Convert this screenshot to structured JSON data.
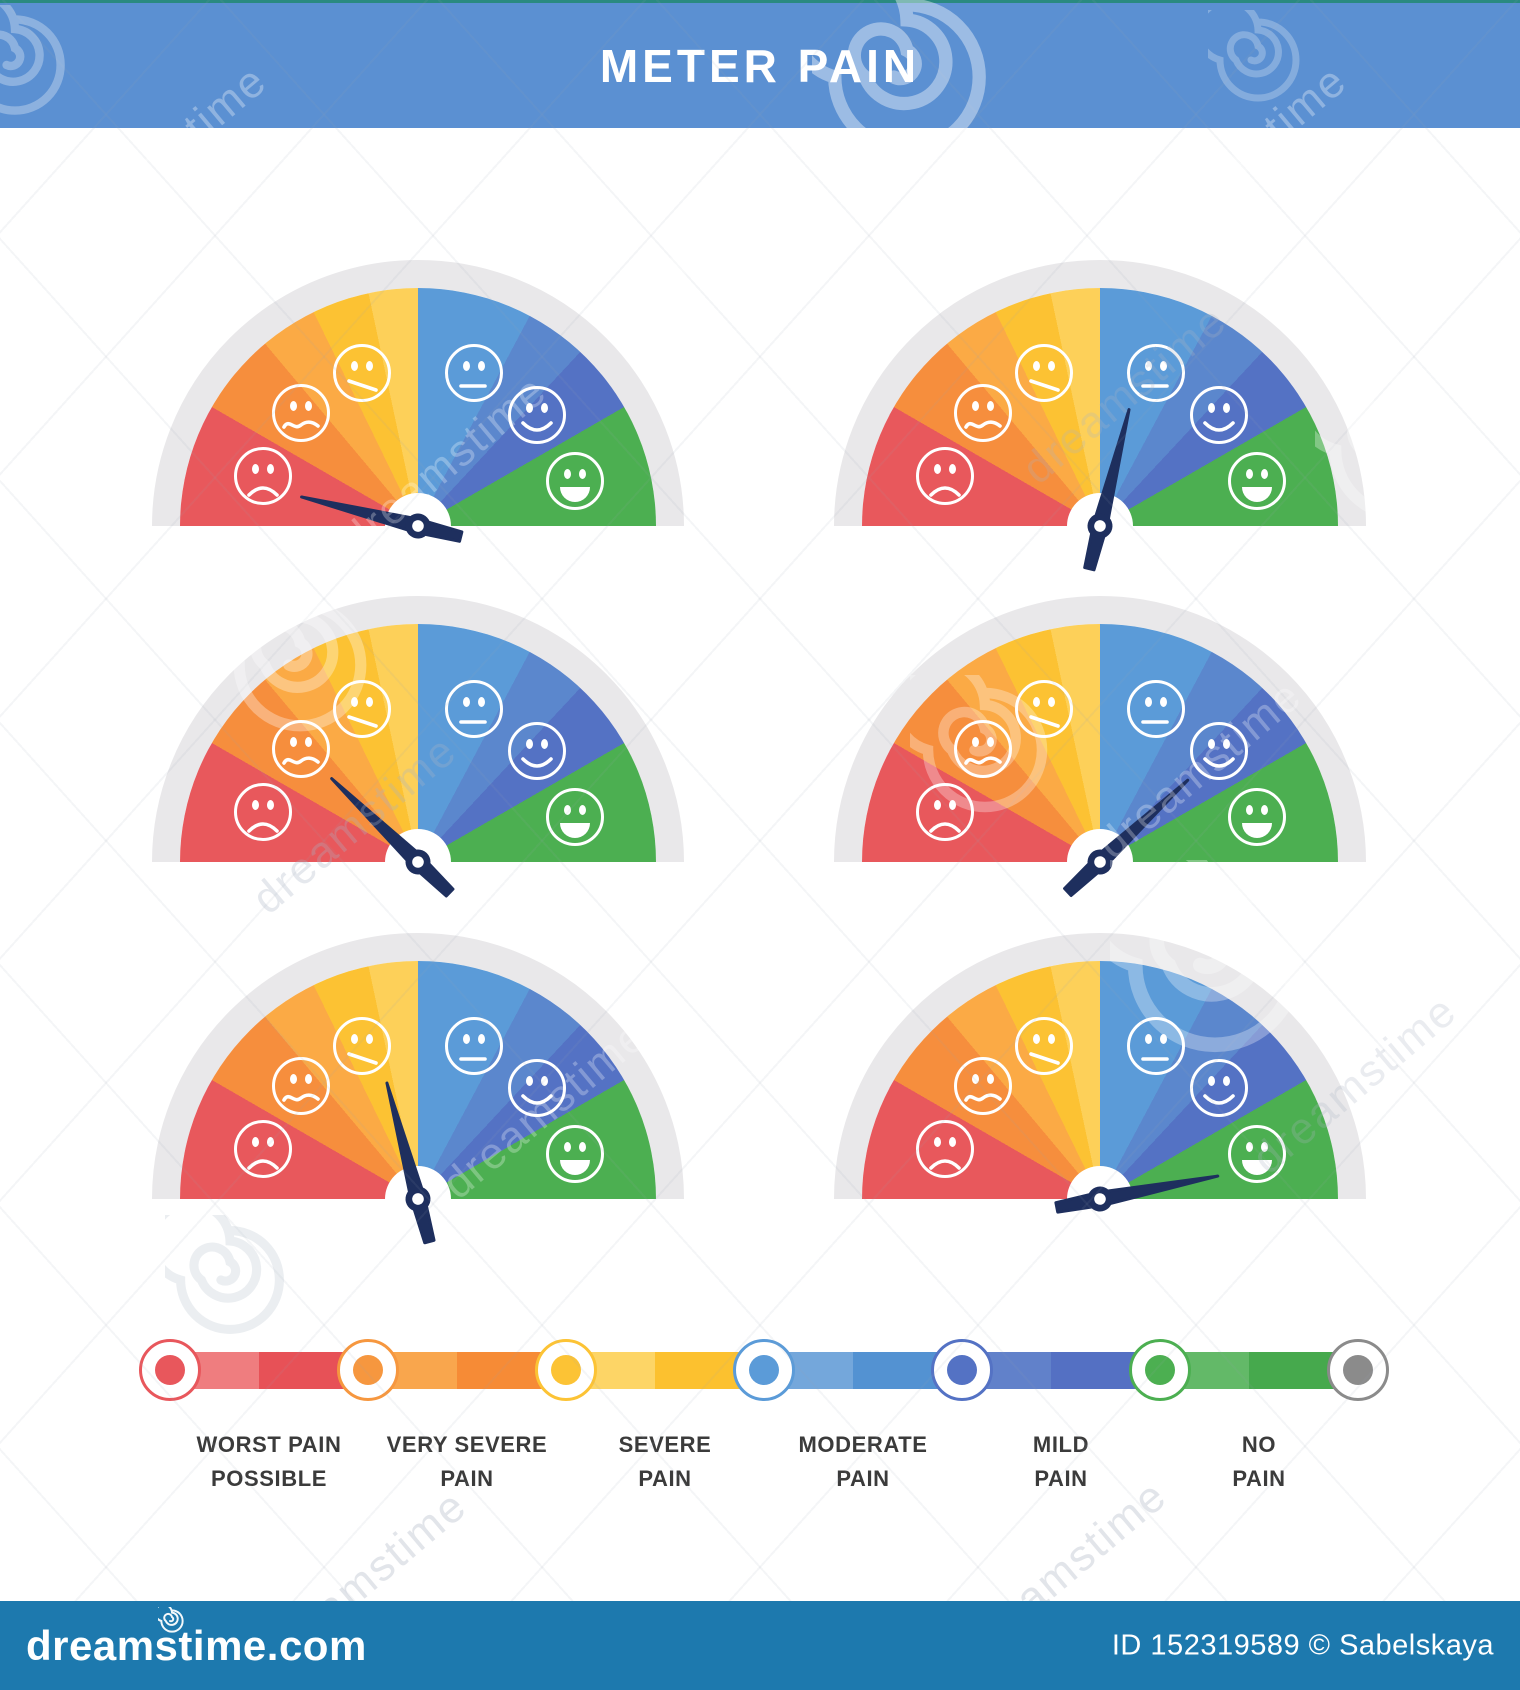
{
  "header": {
    "title": "METER PAIN"
  },
  "palette": {
    "header_bg": "#5b90d2",
    "header_top_stripe": "#2a8a80",
    "footer_bg": "#1d79ae",
    "ring_gray": "#e9e8ea",
    "needle_navy": "#1e2f5e",
    "face_white": "#ffffff",
    "label_text": "#3b3b3b"
  },
  "gauge_segments": [
    {
      "name": "red",
      "from": 0,
      "to": 30,
      "color": "#e8585c"
    },
    {
      "name": "orange",
      "from": 30,
      "to": 50,
      "color": "#f68e3d"
    },
    {
      "name": "orange-light",
      "from": 50,
      "to": 64,
      "color": "#fbaa45"
    },
    {
      "name": "gold",
      "from": 64,
      "to": 78,
      "color": "#fcc233"
    },
    {
      "name": "gold-light",
      "from": 78,
      "to": 90,
      "color": "#fdd059"
    },
    {
      "name": "blue-light",
      "from": 90,
      "to": 118,
      "color": "#5b9bd8"
    },
    {
      "name": "blue-medium",
      "from": 118,
      "to": 133,
      "color": "#5b87cd"
    },
    {
      "name": "indigo",
      "from": 133,
      "to": 150,
      "color": "#5472c4"
    },
    {
      "name": "green",
      "from": 150,
      "to": 180,
      "color": "#4caf51"
    }
  ],
  "faces": [
    {
      "name": "worst-pain-face",
      "mouth": "frown",
      "polar_deg": 162
    },
    {
      "name": "very-severe-face",
      "mouth": "squiggle",
      "polar_deg": 136
    },
    {
      "name": "severe-face",
      "mouth": "slant",
      "polar_deg": 110
    },
    {
      "name": "moderate-face",
      "mouth": "neutral",
      "polar_deg": 70
    },
    {
      "name": "mild-face",
      "mouth": "smile",
      "polar_deg": 43
    },
    {
      "name": "no-pain-face",
      "mouth": "grin",
      "polar_deg": 16
    }
  ],
  "gauges": [
    {
      "id": 1,
      "needle_polar_deg": 166,
      "points_to": "worst-pain-possible"
    },
    {
      "id": 2,
      "needle_polar_deg": 76,
      "points_to": "moderate-pain"
    },
    {
      "id": 3,
      "needle_polar_deg": 136,
      "points_to": "very-severe-pain"
    },
    {
      "id": 4,
      "needle_polar_deg": 43,
      "points_to": "mild-pain"
    },
    {
      "id": 5,
      "needle_polar_deg": 105,
      "points_to": "severe-pain"
    },
    {
      "id": 6,
      "needle_polar_deg": 11,
      "points_to": "no-pain"
    }
  ],
  "scale": {
    "markers": [
      {
        "color": "#e8575c"
      },
      {
        "color": "#f6973f"
      },
      {
        "color": "#fcc335"
      },
      {
        "color": "#5b9bd8"
      },
      {
        "color": "#5472c4"
      },
      {
        "color": "#4caf51"
      },
      {
        "color": "#8b8b8b"
      }
    ],
    "segments": [
      {
        "light": "#ef7d7f",
        "dark": "#e75157",
        "label": [
          "WORST PAIN",
          "POSSIBLE"
        ]
      },
      {
        "light": "#f9a64d",
        "dark": "#f68b36",
        "label": [
          "VERY SEVERE",
          "PAIN"
        ]
      },
      {
        "light": "#fdd566",
        "dark": "#fcc12f",
        "label": [
          "SEVERE",
          "PAIN"
        ]
      },
      {
        "light": "#74a7db",
        "dark": "#5392d2",
        "label": [
          "MODERATE",
          "PAIN"
        ]
      },
      {
        "light": "#6181ca",
        "dark": "#5470c3",
        "label": [
          "MILD",
          "PAIN"
        ]
      },
      {
        "light": "#63b968",
        "dark": "#46a94d",
        "label": [
          "NO",
          "PAIN"
        ]
      }
    ]
  },
  "footer": {
    "logo": "dreamstime.com",
    "credit": "ID 152319589 © Sabelskaya"
  },
  "watermark": {
    "word": "dreamstime"
  }
}
